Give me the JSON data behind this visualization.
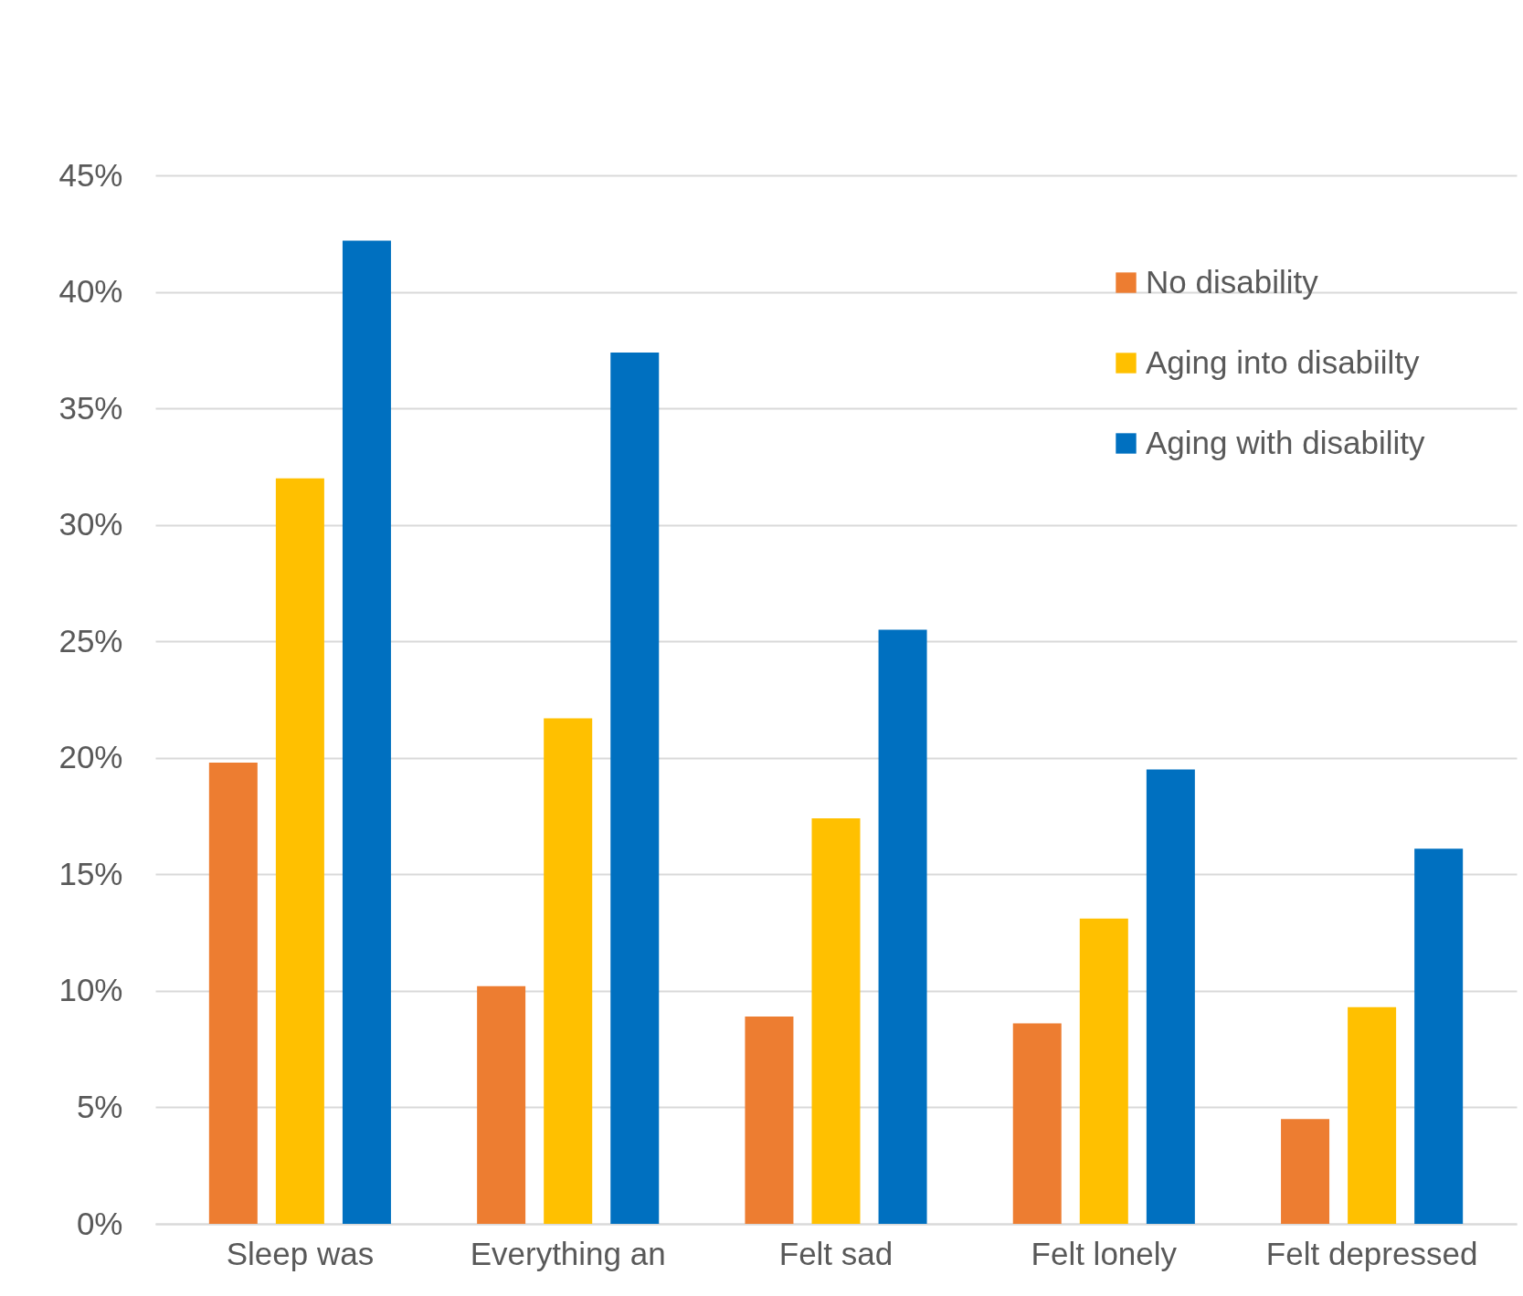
{
  "chart_data": {
    "type": "bar",
    "categories": [
      "Sleep was",
      "Everything an",
      "Felt sad",
      "Felt lonely",
      "Felt depressed"
    ],
    "series": [
      {
        "name": "No disability",
        "color": "#ed7d31",
        "values": [
          19.8,
          10.2,
          8.9,
          8.6,
          4.5
        ]
      },
      {
        "name": "Aging into disabiilty",
        "color": "#ffc000",
        "values": [
          32.0,
          21.7,
          17.4,
          13.1,
          9.3
        ]
      },
      {
        "name": "Aging with disability",
        "color": "#0070c0",
        "values": [
          42.2,
          37.4,
          25.5,
          19.5,
          16.1
        ]
      }
    ],
    "ylim": [
      0,
      45
    ],
    "yticks": [
      {
        "value": 0,
        "label": "0%"
      },
      {
        "value": 5,
        "label": "5%"
      },
      {
        "value": 10,
        "label": "10%"
      },
      {
        "value": 15,
        "label": "15%"
      },
      {
        "value": 20,
        "label": "20%"
      },
      {
        "value": 25,
        "label": "25%"
      },
      {
        "value": 30,
        "label": "30%"
      },
      {
        "value": 35,
        "label": "35%"
      },
      {
        "value": 40,
        "label": "40%"
      },
      {
        "value": 45,
        "label": "45%"
      }
    ],
    "grid": "y",
    "legend": "top right"
  }
}
